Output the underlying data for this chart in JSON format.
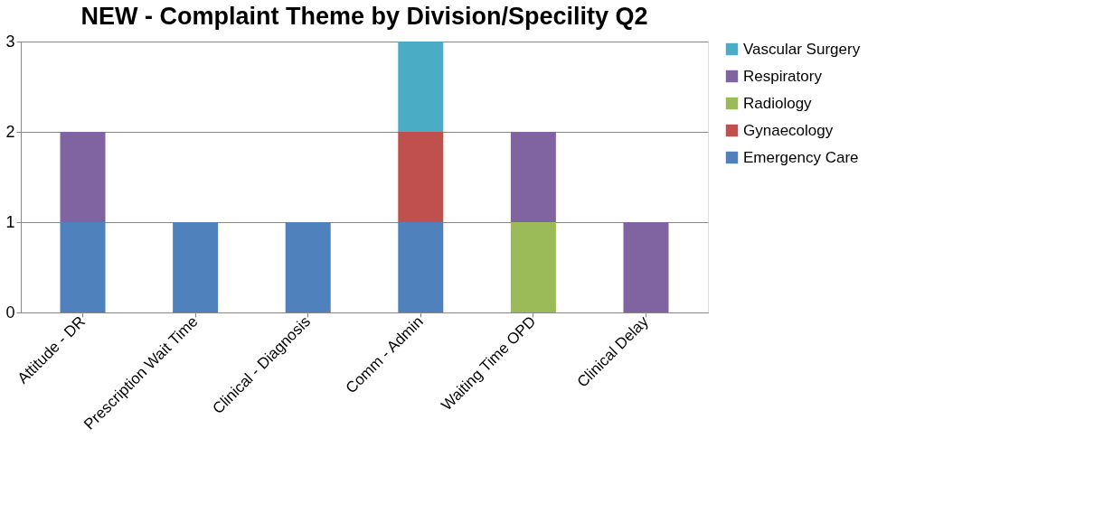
{
  "chart_data": {
    "type": "bar",
    "title": "NEW - Complaint Theme by Division/Specility Q2",
    "categories": [
      "Attitude - DR",
      "Prescription Wait Time",
      "Clinical - Diagnosis",
      "Comm - Admin",
      "Waiting Time OPD",
      "Clinical Delay"
    ],
    "stacked": true,
    "series": [
      {
        "name": "Emergency Care",
        "color": "#4f81bd",
        "values": [
          1,
          1,
          1,
          1,
          null,
          null
        ]
      },
      {
        "name": "Gynaecology",
        "color": "#c0504d",
        "values": [
          null,
          null,
          null,
          1,
          null,
          null
        ]
      },
      {
        "name": "Radiology",
        "color": "#9bbb59",
        "values": [
          null,
          null,
          null,
          null,
          1,
          null
        ]
      },
      {
        "name": "Respiratory",
        "color": "#8064a2",
        "values": [
          1,
          null,
          null,
          null,
          1,
          1
        ]
      },
      {
        "name": "Vascular Surgery",
        "color": "#4bacc6",
        "values": [
          null,
          null,
          null,
          1,
          null,
          null
        ]
      }
    ],
    "ylim": [
      0,
      3
    ],
    "yticks": [
      0,
      1,
      2,
      3
    ],
    "grid": "y",
    "legend": "right"
  }
}
